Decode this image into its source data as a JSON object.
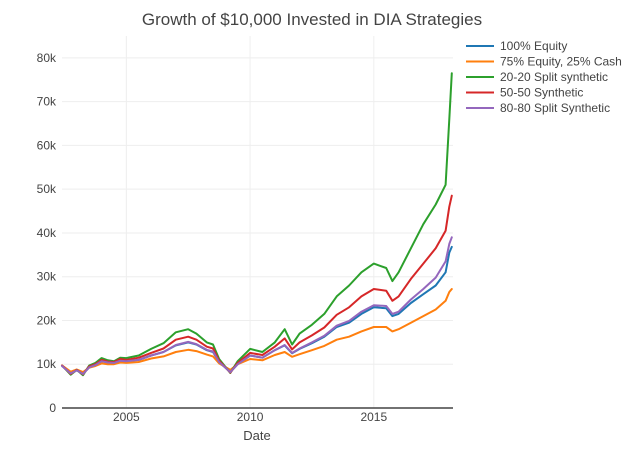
{
  "chart_data": {
    "type": "line",
    "title": "Growth of $10,000 Invested in DIA Strategies",
    "xlabel": "Date",
    "ylabel": "",
    "xlim": [
      2002.4,
      2018.2
    ],
    "ylim": [
      0,
      85000
    ],
    "x_ticks": [
      2005,
      2010,
      2015
    ],
    "x_tick_labels": [
      "2005",
      "2010",
      "2015"
    ],
    "y_ticks": [
      0,
      10000,
      20000,
      30000,
      40000,
      50000,
      60000,
      70000,
      80000
    ],
    "y_tick_labels": [
      "0",
      "10k",
      "20k",
      "30k",
      "40k",
      "50k",
      "60k",
      "70k",
      "80k"
    ],
    "grid": true,
    "legend_position": "top-right",
    "x": [
      2002.4,
      2002.75,
      2003.0,
      2003.25,
      2003.5,
      2003.75,
      2004.0,
      2004.25,
      2004.5,
      2004.75,
      2005.0,
      2005.5,
      2006.0,
      2006.5,
      2007.0,
      2007.5,
      2007.83,
      2008.25,
      2008.5,
      2008.75,
      2009.2,
      2009.5,
      2010.0,
      2010.5,
      2011.0,
      2011.4,
      2011.7,
      2012.0,
      2012.5,
      2013.0,
      2013.5,
      2014.0,
      2014.5,
      2015.0,
      2015.5,
      2015.75,
      2016.0,
      2016.5,
      2017.0,
      2017.5,
      2017.9,
      2018.05,
      2018.15
    ],
    "series": [
      {
        "name": "100% Equity",
        "color": "#1f77b4",
        "values": [
          9600,
          7900,
          8600,
          7800,
          9300,
          9800,
          10700,
          10400,
          10300,
          10800,
          10700,
          11000,
          12000,
          12800,
          14300,
          15000,
          14500,
          13200,
          12800,
          10500,
          8200,
          10000,
          12000,
          11500,
          13200,
          14300,
          12500,
          13500,
          14800,
          16300,
          18500,
          19500,
          21500,
          23000,
          22800,
          21000,
          21500,
          24000,
          26000,
          28000,
          31000,
          35500,
          36800
        ]
      },
      {
        "name": "75% Equity, 25% Cash",
        "color": "#ff7f0e",
        "values": [
          9700,
          8300,
          8800,
          8200,
          9200,
          9600,
          10200,
          10000,
          10000,
          10400,
          10300,
          10500,
          11300,
          11800,
          12800,
          13300,
          13000,
          12200,
          11800,
          10200,
          8700,
          10000,
          11200,
          10900,
          12100,
          12800,
          11700,
          12300,
          13200,
          14200,
          15600,
          16300,
          17500,
          18500,
          18500,
          17500,
          18000,
          19500,
          21000,
          22500,
          24500,
          26500,
          27200
        ]
      },
      {
        "name": "20-20 Split synthetic",
        "color": "#2ca02c",
        "values": [
          9700,
          7600,
          8700,
          7500,
          9700,
          10300,
          11400,
          10900,
          10700,
          11500,
          11400,
          12000,
          13500,
          14800,
          17300,
          18000,
          17000,
          15000,
          14500,
          11200,
          8000,
          10700,
          13500,
          12800,
          15000,
          18000,
          14500,
          17000,
          19000,
          21500,
          25500,
          28000,
          31000,
          33000,
          32000,
          29000,
          31000,
          36500,
          42000,
          46500,
          51000,
          66000,
          76500
        ]
      },
      {
        "name": "50-50 Synthetic",
        "color": "#d62728",
        "values": [
          9700,
          7800,
          8700,
          7700,
          9500,
          10000,
          11000,
          10600,
          10500,
          11200,
          11000,
          11500,
          12600,
          13600,
          15600,
          16300,
          15600,
          14000,
          13600,
          10800,
          8100,
          10300,
          12600,
          12100,
          14000,
          15900,
          13400,
          15000,
          16600,
          18400,
          21300,
          23000,
          25500,
          27200,
          26800,
          24500,
          25500,
          29500,
          33000,
          36500,
          40500,
          46000,
          48500
        ]
      },
      {
        "name": "80-80 Split Synthetic",
        "color": "#9467bd",
        "values": [
          9600,
          7900,
          8600,
          7800,
          9300,
          9800,
          10700,
          10400,
          10300,
          10800,
          10700,
          11000,
          12000,
          12800,
          14400,
          15100,
          14600,
          13300,
          12900,
          10500,
          8200,
          10000,
          12000,
          11500,
          13200,
          14400,
          12600,
          13600,
          15000,
          16500,
          18800,
          19900,
          22000,
          23500,
          23300,
          21500,
          22000,
          24800,
          27200,
          29800,
          33500,
          37500,
          39000
        ]
      }
    ]
  }
}
